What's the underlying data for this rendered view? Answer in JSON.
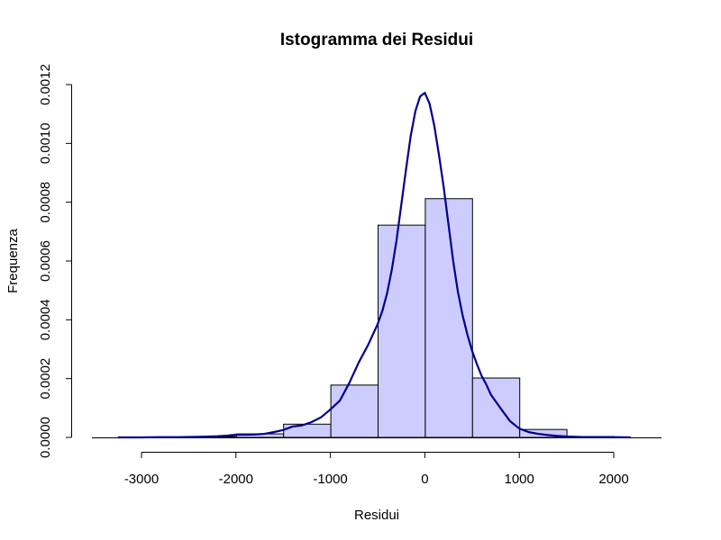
{
  "chart_data": {
    "type": "bar",
    "title": "Istogramma dei Residui",
    "xlabel": "Residui",
    "ylabel": "Frequenza",
    "xlim": [
      -3500,
      2500
    ],
    "ylim": [
      0,
      0.0012
    ],
    "x_ticks": [
      -3000,
      -2000,
      -1000,
      0,
      1000,
      2000
    ],
    "x_tick_labels": [
      "-3000",
      "-2000",
      "-1000",
      "0",
      "1000",
      "2000"
    ],
    "y_ticks": [
      0,
      0.0002,
      0.0004,
      0.0006,
      0.0008,
      0.001,
      0.0012
    ],
    "y_tick_labels": [
      "0.0000",
      "0.0002",
      "0.0004",
      "0.0006",
      "0.0008",
      "0.0010",
      "0.0012"
    ],
    "bins": [
      {
        "from": -3500,
        "to": -3000,
        "density": 0
      },
      {
        "from": -3000,
        "to": -2500,
        "density": 0
      },
      {
        "from": -2500,
        "to": -2000,
        "density": 3e-06
      },
      {
        "from": -2000,
        "to": -1500,
        "density": 1.2e-05
      },
      {
        "from": -1500,
        "to": -1000,
        "density": 4.5e-05
      },
      {
        "from": -1000,
        "to": -500,
        "density": 0.000178
      },
      {
        "from": -500,
        "to": 0,
        "density": 0.000722
      },
      {
        "from": 0,
        "to": 500,
        "density": 0.000812
      },
      {
        "from": 500,
        "to": 1000,
        "density": 0.000202
      },
      {
        "from": 1000,
        "to": 1500,
        "density": 2.7e-05
      },
      {
        "from": 1500,
        "to": 2000,
        "density": 3e-06
      },
      {
        "from": 2000,
        "to": 2500,
        "density": 0
      }
    ],
    "bar_color": "#ccccff",
    "density_series": {
      "name": "",
      "color": "#00008b",
      "x": [
        -3250,
        -3000,
        -2800,
        -2600,
        -2400,
        -2200,
        -2100,
        -2000,
        -1900,
        -1800,
        -1700,
        -1600,
        -1500,
        -1400,
        -1300,
        -1200,
        -1100,
        -1000,
        -900,
        -800,
        -700,
        -600,
        -500,
        -450,
        -400,
        -350,
        -300,
        -250,
        -200,
        -150,
        -100,
        -50,
        0,
        50,
        100,
        150,
        200,
        250,
        300,
        350,
        400,
        450,
        500,
        550,
        600,
        650,
        700,
        800,
        900,
        1000,
        1100,
        1200,
        1300,
        1400,
        1500,
        1600,
        1700,
        1800,
        2000,
        2180
      ],
      "y": [
        0,
        0,
        1e-06,
        1e-06,
        2e-06,
        4e-06,
        6e-06,
        9e-06,
        9e-06,
        1e-05,
        1.2e-05,
        1.8e-05,
        2.5e-05,
        3.7e-05,
        4.1e-05,
        5.2e-05,
        6.8e-05,
        9.5e-05,
        0.000125,
        0.000185,
        0.000255,
        0.000315,
        0.000385,
        0.00043,
        0.00049,
        0.00057,
        0.00067,
        0.00079,
        0.00091,
        0.001025,
        0.00111,
        0.00116,
        0.001172,
        0.001135,
        0.00106,
        0.00096,
        0.00085,
        0.000725,
        0.0006,
        0.000495,
        0.000415,
        0.00035,
        0.000295,
        0.00025,
        0.00021,
        0.00018,
        0.000145,
        0.0001,
        5.6e-05,
        3e-05,
        1.8e-05,
        1.2e-05,
        8e-06,
        5e-06,
        3e-06,
        2e-06,
        1e-06,
        1e-06,
        1e-06,
        0
      ]
    }
  }
}
